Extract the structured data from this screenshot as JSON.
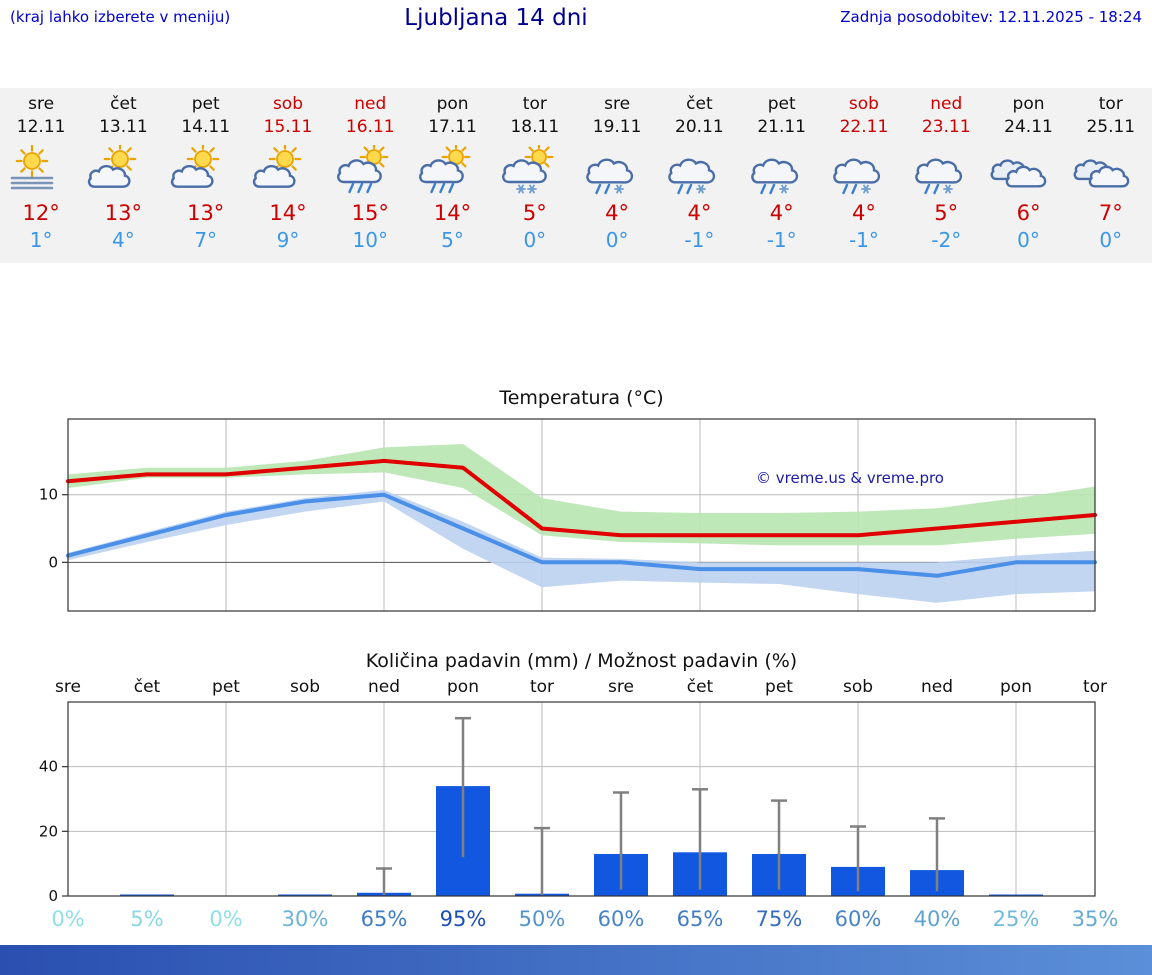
{
  "header": {
    "hint": "(kraj lahko izberete v meniju)",
    "title": "Ljubljana 14 dni",
    "updated": "Zadnja posodobitev: 12.11.2025 - 18:24"
  },
  "colors": {
    "link_blue": "#0000cc",
    "title_blue": "#00008b",
    "weekend_red": "#cc0000",
    "high_red": "#cc0000",
    "low_blue": "#3a97e8",
    "line_red": "#e00000",
    "line_blue": "#4a8fe8",
    "band_green": "#b8e6b0",
    "band_blue": "#bcd2f0",
    "bar_blue": "#1257e0",
    "whisker_gray": "#808080",
    "grid": "#bbbbbb",
    "axis": "#333333",
    "prob_low": "#8fe0e6",
    "prob_high": "#1545b5",
    "watermark": "#1a1aa8",
    "footer_left": "#2a4fb0",
    "footer_right": "#5b8fd8"
  },
  "forecast": {
    "days": [
      {
        "name": "sre",
        "date": "12.11",
        "weekend": false,
        "icon": "sun-fog",
        "high": "12°",
        "low": "1°"
      },
      {
        "name": "čet",
        "date": "13.11",
        "weekend": false,
        "icon": "sun-cloud",
        "high": "13°",
        "low": "4°"
      },
      {
        "name": "pet",
        "date": "14.11",
        "weekend": false,
        "icon": "sun-cloud",
        "high": "13°",
        "low": "7°"
      },
      {
        "name": "sob",
        "date": "15.11",
        "weekend": true,
        "icon": "sun-cloud",
        "high": "14°",
        "low": "9°"
      },
      {
        "name": "ned",
        "date": "16.11",
        "weekend": true,
        "icon": "cloud-sun-rain",
        "high": "15°",
        "low": "10°"
      },
      {
        "name": "pon",
        "date": "17.11",
        "weekend": false,
        "icon": "cloud-sun-rain",
        "high": "14°",
        "low": "5°"
      },
      {
        "name": "tor",
        "date": "18.11",
        "weekend": false,
        "icon": "cloud-sun-snow",
        "high": "5°",
        "low": "0°"
      },
      {
        "name": "sre",
        "date": "19.11",
        "weekend": false,
        "icon": "cloud-sleet",
        "high": "4°",
        "low": "0°"
      },
      {
        "name": "čet",
        "date": "20.11",
        "weekend": false,
        "icon": "cloud-sleet",
        "high": "4°",
        "low": "-1°"
      },
      {
        "name": "pet",
        "date": "21.11",
        "weekend": false,
        "icon": "cloud-sleet",
        "high": "4°",
        "low": "-1°"
      },
      {
        "name": "sob",
        "date": "22.11",
        "weekend": true,
        "icon": "cloud-sleet",
        "high": "4°",
        "low": "-1°"
      },
      {
        "name": "ned",
        "date": "23.11",
        "weekend": true,
        "icon": "cloud-sleet",
        "high": "5°",
        "low": "-2°"
      },
      {
        "name": "pon",
        "date": "24.11",
        "weekend": false,
        "icon": "cloudy",
        "high": "6°",
        "low": "0°"
      },
      {
        "name": "tor",
        "date": "25.11",
        "weekend": false,
        "icon": "cloudy",
        "high": "7°",
        "low": "0°"
      }
    ]
  },
  "chart_data": [
    {
      "type": "line",
      "title": "Temperatura (°C)",
      "categories": [
        "sre",
        "čet",
        "pet",
        "sob",
        "ned",
        "pon",
        "tor",
        "sre",
        "čet",
        "pet",
        "sob",
        "ned",
        "pon",
        "tor"
      ],
      "series": [
        {
          "name": "max-temperature",
          "color_key": "line_red",
          "values": [
            12,
            13,
            13,
            14,
            15,
            14,
            5,
            4,
            4,
            4,
            4,
            5,
            6,
            7
          ],
          "band": {
            "color_key": "band_green",
            "upper": [
              13,
              14,
              14,
              15,
              17,
              17.5,
              9.5,
              7.5,
              7.3,
              7.3,
              7.5,
              8,
              9.5,
              11.2
            ],
            "lower": [
              11,
              12.5,
              12.5,
              13,
              13.3,
              11,
              4,
              3,
              2.8,
              2.5,
              2.5,
              2.5,
              3.5,
              4.2
            ]
          }
        },
        {
          "name": "min-temperature",
          "color_key": "line_blue",
          "values": [
            1,
            4,
            7,
            9,
            10,
            5,
            0,
            0,
            -1,
            -1,
            -1,
            -2,
            0,
            0
          ],
          "band": {
            "color_key": "band_blue",
            "upper": [
              1.4,
              4.5,
              7.5,
              9.5,
              10.7,
              6,
              0.7,
              0.5,
              0,
              0,
              0,
              0,
              1,
              1.7
            ],
            "lower": [
              0.3,
              3,
              5.5,
              7.5,
              9,
              2,
              -3.7,
              -2.7,
              -3,
              -3.2,
              -4.7,
              -6,
              -4.7,
              -4.3
            ]
          }
        }
      ],
      "ylim": [
        -7.2,
        21.2
      ],
      "yticks": [
        {
          "v": 0,
          "label": "0"
        },
        {
          "v": 10,
          "label": "10"
        }
      ],
      "grid": true,
      "watermark": "© vreme.us & vreme.pro"
    },
    {
      "type": "bar",
      "title": "Količina padavin (mm) / Možnost padavin (%)",
      "categories": [
        "sre",
        "čet",
        "pet",
        "sob",
        "ned",
        "pon",
        "tor",
        "sre",
        "čet",
        "pet",
        "sob",
        "ned",
        "pon",
        "tor"
      ],
      "values": [
        0,
        0.1,
        0,
        0.3,
        1,
        34,
        0.7,
        13,
        13.5,
        13,
        9,
        8,
        0.2,
        0
      ],
      "whisker_min": [
        0,
        0,
        0,
        0,
        0.3,
        12,
        0.3,
        2,
        2,
        2,
        1.5,
        1.5,
        0,
        0
      ],
      "whisker_max": [
        0,
        0,
        0,
        0,
        8.5,
        55,
        21,
        32,
        33,
        29.5,
        21.5,
        24,
        0,
        0
      ],
      "probability": [
        {
          "label": "0%",
          "value": 0
        },
        {
          "label": "5%",
          "value": 5
        },
        {
          "label": "0%",
          "value": 0
        },
        {
          "label": "30%",
          "value": 30
        },
        {
          "label": "65%",
          "value": 65
        },
        {
          "label": "95%",
          "value": 95
        },
        {
          "label": "50%",
          "value": 50
        },
        {
          "label": "60%",
          "value": 60
        },
        {
          "label": "65%",
          "value": 65
        },
        {
          "label": "75%",
          "value": 75
        },
        {
          "label": "60%",
          "value": 60
        },
        {
          "label": "40%",
          "value": 40
        },
        {
          "label": "25%",
          "value": 25
        },
        {
          "label": "35%",
          "value": 35
        }
      ],
      "ylim": [
        0,
        60
      ],
      "yticks": [
        {
          "v": 0,
          "label": "0"
        },
        {
          "v": 20,
          "label": "20"
        },
        {
          "v": 40,
          "label": "40"
        }
      ],
      "grid": true
    }
  ]
}
